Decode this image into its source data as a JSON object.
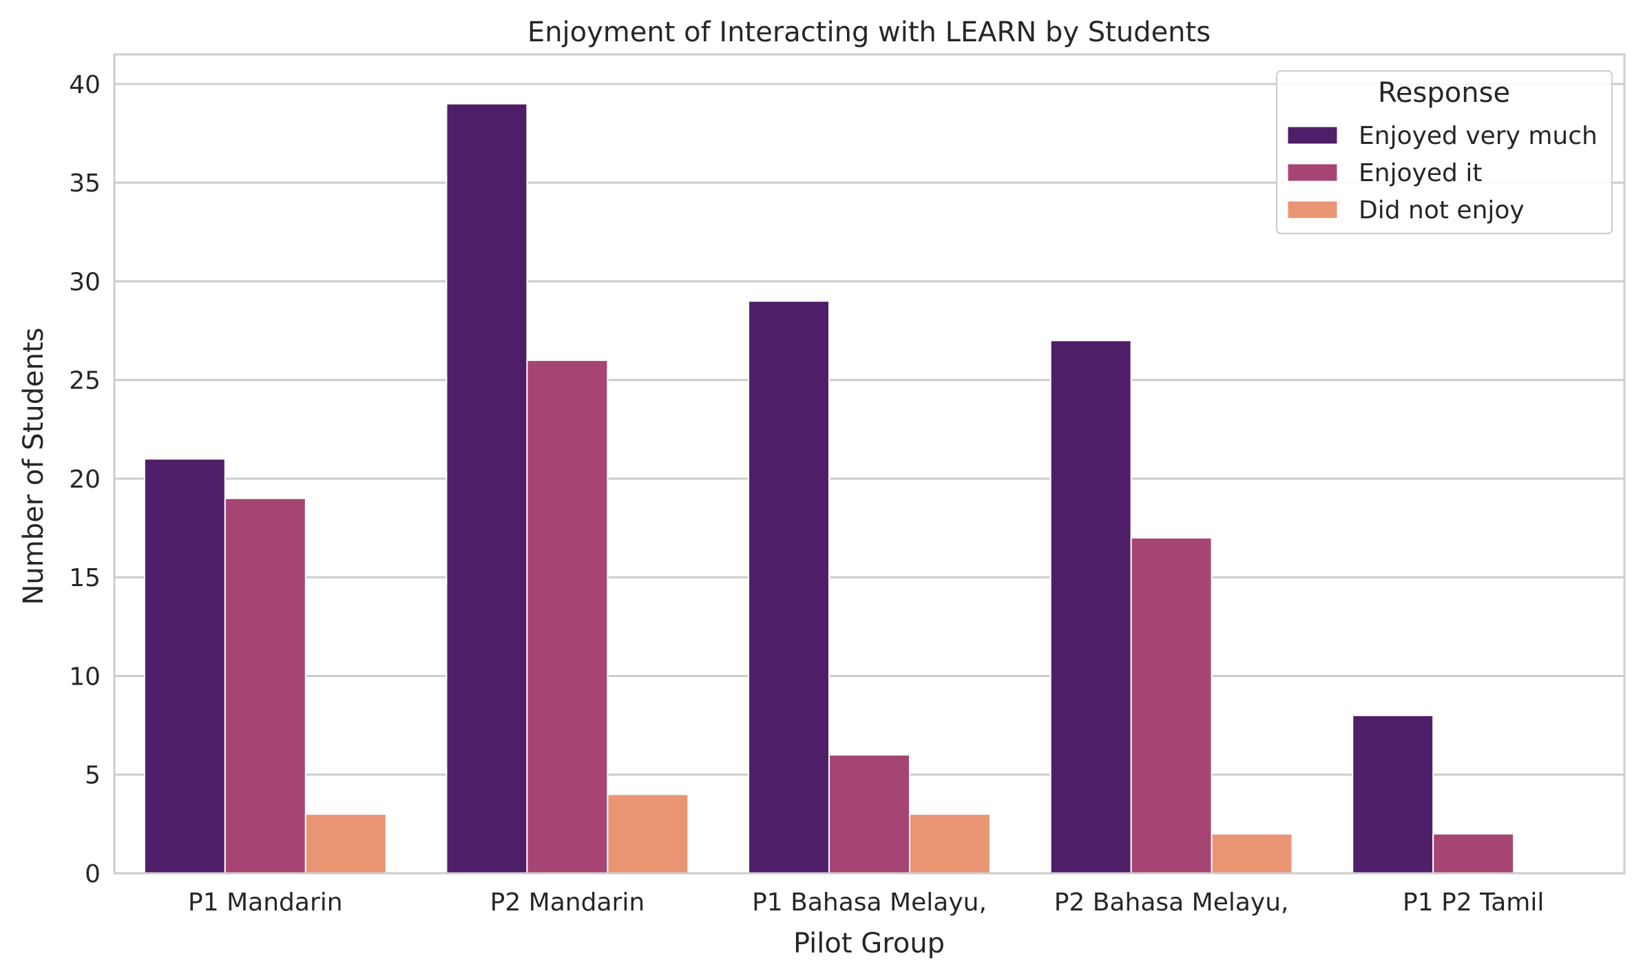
{
  "chart_data": {
    "type": "bar",
    "title": "Enjoyment of Interacting with LEARN by Students",
    "xlabel": "Pilot Group",
    "ylabel": "Number of Students",
    "categories": [
      "P1 Mandarin",
      "P2 Mandarin",
      "P1 Bahasa Melayu,",
      "P2 Bahasa Melayu,",
      "P1 P2 Tamil"
    ],
    "series": [
      {
        "name": "Enjoyed very much",
        "values": [
          21,
          39,
          29,
          27,
          8
        ],
        "color": "#4f1e68"
      },
      {
        "name": "Enjoyed it",
        "values": [
          19,
          26,
          6,
          17,
          2
        ],
        "color": "#a64574"
      },
      {
        "name": "Did not enjoy",
        "values": [
          3,
          4,
          3,
          2,
          0
        ],
        "color": "#e99574"
      }
    ],
    "ylim": [
      0,
      41.5
    ],
    "yticks": [
      0,
      5,
      10,
      15,
      20,
      25,
      30,
      35,
      40
    ],
    "grid": true,
    "legend": {
      "title": "Response",
      "position": "top-right"
    }
  }
}
